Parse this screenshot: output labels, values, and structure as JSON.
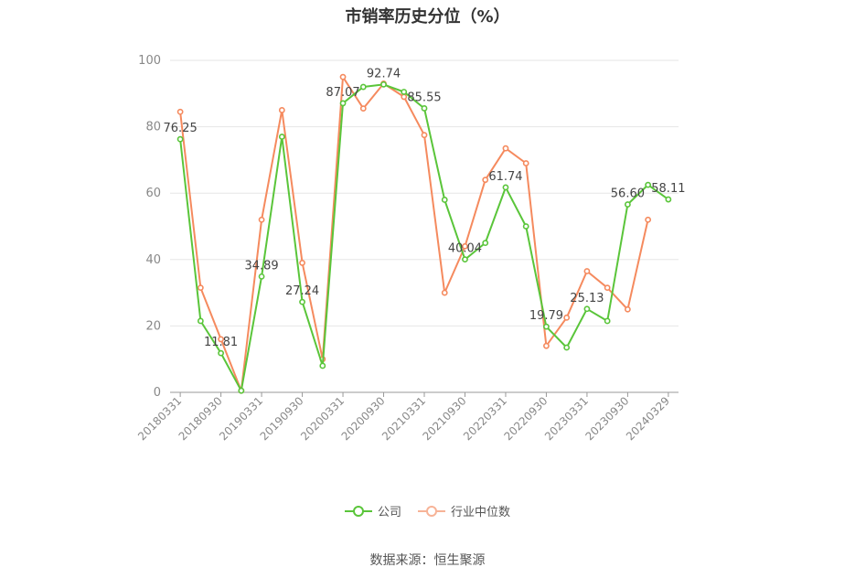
{
  "chart_data": {
    "type": "line",
    "title": "市销率历史分位（%）",
    "xlabel": "",
    "ylabel": "",
    "ylim": [
      0,
      100
    ],
    "yticks": [
      0,
      20,
      40,
      60,
      80,
      100
    ],
    "x": [
      "20180331",
      "20180630",
      "20180930",
      "20181231",
      "20190331",
      "20190630",
      "20190930",
      "20191231",
      "20200331",
      "20200630",
      "20200930",
      "20201231",
      "20210331",
      "20210630",
      "20210930",
      "20211231",
      "20220331",
      "20220630",
      "20220930",
      "20221231",
      "20230331",
      "20230630",
      "20230930",
      "20231231",
      "20240329"
    ],
    "xtick_labels": [
      "20180331",
      "20180930",
      "20190331",
      "20190930",
      "20200331",
      "20200930",
      "20210331",
      "20210930",
      "20220331",
      "20220930",
      "20230331",
      "20230930",
      "20240329"
    ],
    "series": [
      {
        "name": "公司",
        "color": "#5ac53a",
        "values": [
          76.25,
          21.5,
          11.81,
          0.5,
          34.89,
          77.0,
          27.24,
          8.0,
          87.07,
          92.0,
          92.74,
          90.5,
          85.55,
          58.0,
          40.04,
          45.0,
          61.74,
          50.0,
          19.79,
          13.5,
          25.13,
          21.5,
          56.6,
          62.5,
          58.11
        ],
        "labels": [
          "76.25",
          "",
          "11.81",
          "",
          "34.89",
          "",
          "27.24",
          "",
          "87.07",
          "",
          "92.74",
          "",
          "85.55",
          "",
          "40.04",
          "",
          "61.74",
          "",
          "19.79",
          "",
          "25.13",
          "",
          "56.60",
          "",
          "58.11"
        ]
      },
      {
        "name": "行业中位数",
        "color": "#f58a5e",
        "values": [
          84.5,
          31.5,
          16.0,
          0.5,
          52.0,
          85.0,
          39.0,
          10.0,
          95.0,
          85.5,
          93.0,
          89.0,
          77.5,
          30.0,
          44.0,
          64.0,
          73.5,
          69.0,
          14.0,
          22.5,
          36.5,
          31.5,
          25.0,
          52.0,
          null
        ]
      }
    ],
    "grid": true,
    "legend": "bottom-center"
  },
  "legend": {
    "company": "公司",
    "industry": "行业中位数"
  },
  "source": "数据来源：恒生聚源"
}
